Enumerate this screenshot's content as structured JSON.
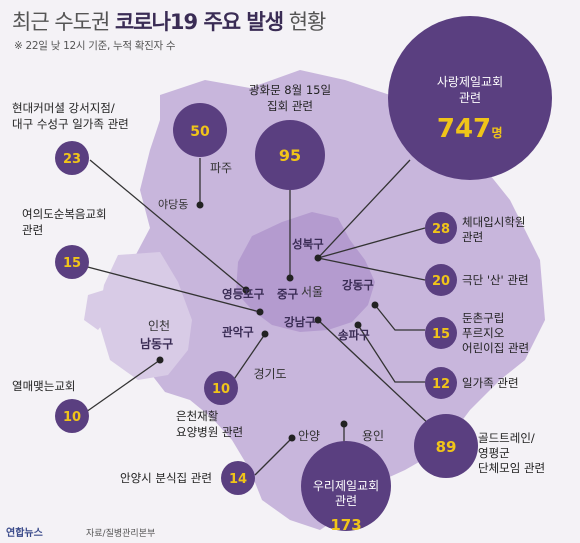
{
  "header": {
    "title_prefix": "최근 수도권 ",
    "title_strong": "코로나19 주요 발생",
    "title_suffix": " 현황",
    "subtitle": "※ 22일 낮 12시 기준, 누적 확진자 수"
  },
  "footer": {
    "logo": "연합뉴스",
    "source": "자료/질병관리본부"
  },
  "colors": {
    "bubble": "#5a3f80",
    "bubble_yellow": "#f0c419",
    "region": "#c8b6dc",
    "seoul": "#b49bcf",
    "label": "#3a2c55",
    "line": "#333333"
  },
  "regions": {
    "seoul": "서울",
    "gyeonggi": "경기도",
    "paju": "파주",
    "incheon_a": "인천",
    "incheon_b": "남동구",
    "anyang": "안양",
    "yongin": "용인",
    "yadang": "야당동"
  },
  "districts": {
    "seongbuk": "성북구",
    "gangdong": "강동구",
    "yeongdeungpo": "영등포구",
    "jung": "중구",
    "gangnam": "강남구",
    "songpa": "송파구",
    "gwanak": "관악구"
  },
  "clusters": [
    {
      "id": "sarang",
      "count": "747",
      "unit": "명",
      "line1": "사랑제일교회",
      "line2": "관련"
    },
    {
      "id": "gwanghwamun",
      "count": "95",
      "line1": "광화문 8월 15일",
      "line2": "집회 관련"
    },
    {
      "id": "yadang",
      "count": "50"
    },
    {
      "id": "hyundai",
      "count": "23",
      "line1": "현대커머셜 강서지점/",
      "line2": "대구 수성구 일가족 관련"
    },
    {
      "id": "yeouido",
      "count": "15",
      "line1": "여의도순복음교회",
      "line2": "관련"
    },
    {
      "id": "yeolmae",
      "count": "10",
      "line1": "열매맺는교회"
    },
    {
      "id": "euncheon",
      "count": "10",
      "line1": "은천재활",
      "line2": "요양병원 관련"
    },
    {
      "id": "anyang",
      "count": "14",
      "line1": "안양시 분식집 관련"
    },
    {
      "id": "woori",
      "count": "173",
      "line1": "우리제일교회",
      "line2": "관련"
    },
    {
      "id": "golden",
      "count": "89",
      "line1": "골드트레인/",
      "line2": "영평군",
      "line3": "단체모임 관련"
    },
    {
      "id": "exam",
      "count": "28",
      "line1": "체대입시학원",
      "line2": "관련"
    },
    {
      "id": "theater",
      "count": "20",
      "line1": "극단 '산' 관련"
    },
    {
      "id": "dunchon",
      "count": "15",
      "line1": "둔촌구립",
      "line2": "푸르지오",
      "line3": "어린이집 관련"
    },
    {
      "id": "family",
      "count": "12",
      "line1": "일가족 관련"
    }
  ]
}
